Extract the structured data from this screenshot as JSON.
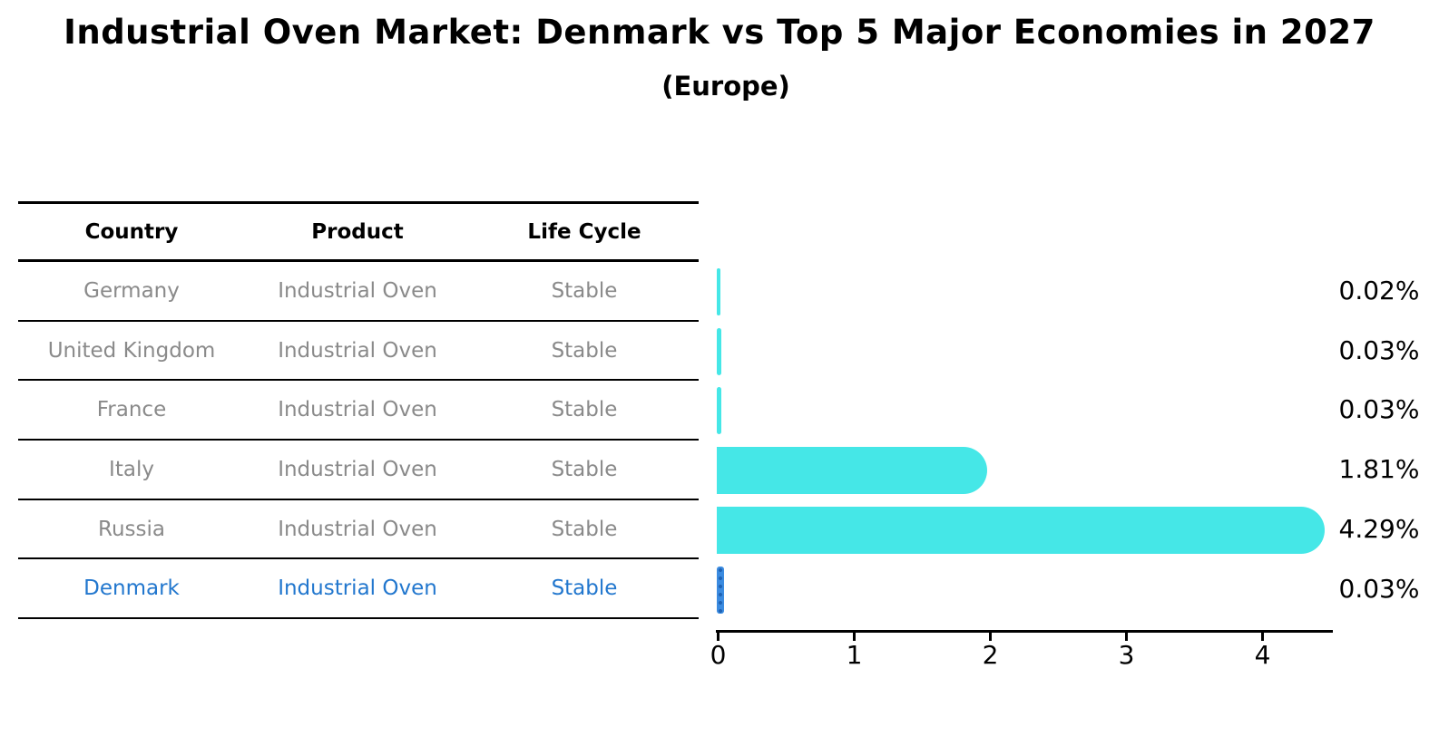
{
  "title": "Industrial Oven Market: Denmark vs Top 5 Major Economies in 2027",
  "subtitle": "(Europe)",
  "colors": {
    "bar": "#45e7e7",
    "highlight_bar": "#3b8be0",
    "highlight_dot": "#1f63b5",
    "highlight_text": "#2277ce",
    "row_text": "#8a8a8a",
    "header_text": "#000000",
    "axis_text": "#000000"
  },
  "table": {
    "headers": [
      "Country",
      "Product",
      "Life Cycle"
    ],
    "rows": [
      {
        "country": "Germany",
        "product": "Industrial Oven",
        "life_cycle": "Stable",
        "highlight": false
      },
      {
        "country": "United Kingdom",
        "product": "Industrial Oven",
        "life_cycle": "Stable",
        "highlight": false
      },
      {
        "country": "France",
        "product": "Industrial Oven",
        "life_cycle": "Stable",
        "highlight": false
      },
      {
        "country": "Italy",
        "product": "Industrial Oven",
        "life_cycle": "Stable",
        "highlight": false
      },
      {
        "country": "Russia",
        "product": "Industrial Oven",
        "life_cycle": "Stable",
        "highlight": false
      },
      {
        "country": "Denmark",
        "product": "Industrial Oven",
        "life_cycle": "Stable",
        "highlight": true
      }
    ]
  },
  "chart_data": {
    "type": "bar",
    "orientation": "horizontal",
    "title": "Industrial Oven Market: Denmark vs Top 5 Major Economies in 2027",
    "subtitle": "(Europe)",
    "categories": [
      "Germany",
      "United Kingdom",
      "France",
      "Italy",
      "Russia",
      "Denmark"
    ],
    "values": [
      0.02,
      0.03,
      0.03,
      1.81,
      4.29,
      0.03
    ],
    "value_labels": [
      "0.02%",
      "0.03%",
      "0.03%",
      "1.81%",
      "4.29%",
      "0.03%"
    ],
    "x_ticks": [
      "0",
      "1",
      "2",
      "3",
      "4"
    ],
    "xlim": [
      0,
      4.5
    ],
    "grid": false,
    "legend": false,
    "highlight_category": "Denmark",
    "unit": "percent"
  }
}
